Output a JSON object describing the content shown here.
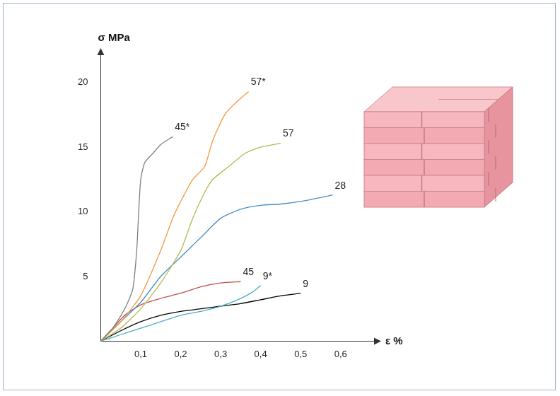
{
  "chart_data": {
    "type": "line",
    "x_label": "ε %",
    "y_label": "σ MPa",
    "xlim": [
      0,
      0.68
    ],
    "ylim": [
      0,
      22
    ],
    "xticks": [
      {
        "value": 0.1,
        "label": "0,1"
      },
      {
        "value": 0.2,
        "label": "0,2"
      },
      {
        "value": 0.3,
        "label": "0,3"
      },
      {
        "value": 0.4,
        "label": "0,4"
      },
      {
        "value": 0.5,
        "label": "0,5"
      },
      {
        "value": 0.6,
        "label": "0,6"
      }
    ],
    "yticks": [
      5,
      10,
      15,
      20
    ],
    "grid": false,
    "series": [
      {
        "name": "45*",
        "color": "#7f7f7f",
        "x": [
          0,
          0.03,
          0.06,
          0.08,
          0.09,
          0.095,
          0.1,
          0.11,
          0.13,
          0.15,
          0.18
        ],
        "values": [
          0,
          1,
          2.5,
          4,
          7,
          10,
          12.5,
          13.8,
          14.5,
          15.2,
          15.8
        ]
      },
      {
        "name": "57*",
        "color": "#f39a3e",
        "x": [
          0,
          0.05,
          0.1,
          0.15,
          0.18,
          0.2,
          0.23,
          0.26,
          0.28,
          0.31,
          0.34,
          0.37
        ],
        "values": [
          0,
          1.5,
          3.5,
          7,
          9.5,
          10.8,
          12.5,
          13.5,
          15.5,
          17.5,
          18.5,
          19.3
        ]
      },
      {
        "name": "57",
        "color": "#b3b94e",
        "x": [
          0,
          0.05,
          0.1,
          0.15,
          0.2,
          0.23,
          0.26,
          0.28,
          0.32,
          0.36,
          0.4,
          0.45
        ],
        "values": [
          0,
          1,
          2.5,
          4.5,
          7,
          9.5,
          11.5,
          12.5,
          13.5,
          14.5,
          15,
          15.3
        ]
      },
      {
        "name": "28",
        "color": "#4a8ec6",
        "x": [
          0,
          0.05,
          0.1,
          0.15,
          0.2,
          0.25,
          0.3,
          0.35,
          0.4,
          0.45,
          0.5,
          0.55,
          0.58
        ],
        "values": [
          0,
          1.5,
          3,
          5,
          6.5,
          8,
          9.5,
          10.2,
          10.5,
          10.6,
          10.8,
          11.1,
          11.3
        ]
      },
      {
        "name": "45",
        "color": "#c0504d",
        "x": [
          0,
          0.03,
          0.06,
          0.1,
          0.15,
          0.2,
          0.25,
          0.3,
          0.35
        ],
        "values": [
          0,
          1,
          2,
          2.8,
          3.3,
          3.7,
          4.2,
          4.5,
          4.6
        ]
      },
      {
        "name": "9*",
        "color": "#4bacc6",
        "x": [
          0,
          0.05,
          0.1,
          0.15,
          0.2,
          0.25,
          0.3,
          0.35,
          0.38,
          0.4
        ],
        "values": [
          0,
          0.5,
          1,
          1.5,
          2,
          2.3,
          2.7,
          3.3,
          3.8,
          4.3
        ]
      },
      {
        "name": "9",
        "color": "#000000",
        "x": [
          0,
          0.05,
          0.1,
          0.15,
          0.2,
          0.25,
          0.3,
          0.35,
          0.4,
          0.45,
          0.5
        ],
        "values": [
          0,
          0.8,
          1.5,
          2,
          2.3,
          2.5,
          2.7,
          2.9,
          3.2,
          3.5,
          3.7
        ]
      }
    ]
  }
}
